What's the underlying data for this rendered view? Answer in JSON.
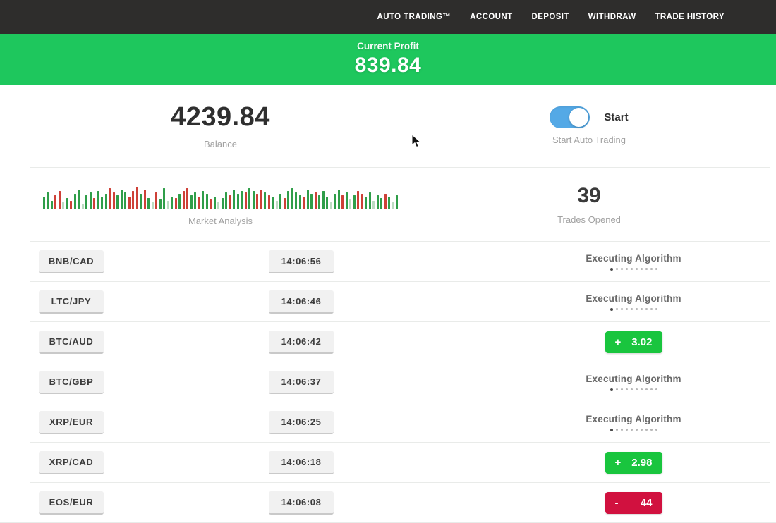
{
  "navbar": {
    "items": [
      {
        "label": "AUTO TRADING™"
      },
      {
        "label": "ACCOUNT"
      },
      {
        "label": "DEPOSIT"
      },
      {
        "label": "WITHDRAW"
      },
      {
        "label": "TRADE HISTORY"
      }
    ]
  },
  "profit_banner": {
    "label": "Current Profit",
    "value": "839.84",
    "bg": "#1ec75d"
  },
  "balance": {
    "value": "4239.84",
    "label": "Balance"
  },
  "auto_trading": {
    "toggle_state": "on",
    "toggle_color": "#54a9e6",
    "toggle_label": "Start",
    "caption": "Start Auto Trading"
  },
  "market_analysis": {
    "label": "Market Analysis",
    "bar_colors": {
      "g": "#2f9e49",
      "r": "#ce4037",
      "G": "#bcdcc2"
    },
    "bars": [
      [
        18,
        "g"
      ],
      [
        24,
        "g"
      ],
      [
        12,
        "g"
      ],
      [
        20,
        "r"
      ],
      [
        26,
        "r"
      ],
      [
        10,
        "G"
      ],
      [
        16,
        "g"
      ],
      [
        12,
        "r"
      ],
      [
        22,
        "g"
      ],
      [
        28,
        "g"
      ],
      [
        8,
        "G"
      ],
      [
        20,
        "g"
      ],
      [
        24,
        "g"
      ],
      [
        16,
        "r"
      ],
      [
        26,
        "g"
      ],
      [
        18,
        "g"
      ],
      [
        22,
        "g"
      ],
      [
        30,
        "r"
      ],
      [
        24,
        "r"
      ],
      [
        20,
        "g"
      ],
      [
        28,
        "g"
      ],
      [
        24,
        "g"
      ],
      [
        18,
        "r"
      ],
      [
        26,
        "r"
      ],
      [
        32,
        "r"
      ],
      [
        22,
        "g"
      ],
      [
        28,
        "r"
      ],
      [
        16,
        "g"
      ],
      [
        10,
        "G"
      ],
      [
        24,
        "r"
      ],
      [
        14,
        "g"
      ],
      [
        30,
        "g"
      ],
      [
        12,
        "G"
      ],
      [
        18,
        "g"
      ],
      [
        16,
        "r"
      ],
      [
        22,
        "g"
      ],
      [
        26,
        "r"
      ],
      [
        30,
        "r"
      ],
      [
        20,
        "g"
      ],
      [
        24,
        "g"
      ],
      [
        18,
        "r"
      ],
      [
        26,
        "g"
      ],
      [
        22,
        "g"
      ],
      [
        14,
        "r"
      ],
      [
        18,
        "g"
      ],
      [
        10,
        "G"
      ],
      [
        16,
        "g"
      ],
      [
        24,
        "g"
      ],
      [
        20,
        "r"
      ],
      [
        28,
        "g"
      ],
      [
        22,
        "g"
      ],
      [
        26,
        "g"
      ],
      [
        24,
        "r"
      ],
      [
        30,
        "g"
      ],
      [
        26,
        "g"
      ],
      [
        22,
        "r"
      ],
      [
        28,
        "r"
      ],
      [
        24,
        "g"
      ],
      [
        20,
        "r"
      ],
      [
        18,
        "g"
      ],
      [
        12,
        "G"
      ],
      [
        22,
        "g"
      ],
      [
        16,
        "r"
      ],
      [
        26,
        "g"
      ],
      [
        30,
        "g"
      ],
      [
        24,
        "g"
      ],
      [
        20,
        "g"
      ],
      [
        18,
        "r"
      ],
      [
        28,
        "g"
      ],
      [
        22,
        "g"
      ],
      [
        24,
        "r"
      ],
      [
        20,
        "g"
      ],
      [
        26,
        "g"
      ],
      [
        18,
        "g"
      ],
      [
        10,
        "G"
      ],
      [
        22,
        "g"
      ],
      [
        28,
        "g"
      ],
      [
        20,
        "r"
      ],
      [
        24,
        "g"
      ],
      [
        14,
        "G"
      ],
      [
        20,
        "g"
      ],
      [
        26,
        "r"
      ],
      [
        22,
        "r"
      ],
      [
        18,
        "g"
      ],
      [
        24,
        "g"
      ],
      [
        12,
        "G"
      ],
      [
        20,
        "g"
      ],
      [
        16,
        "g"
      ],
      [
        22,
        "r"
      ],
      [
        18,
        "g"
      ],
      [
        10,
        "G"
      ],
      [
        20,
        "g"
      ]
    ]
  },
  "trades_opened": {
    "value": "39",
    "label": "Trades Opened"
  },
  "trades": {
    "rows": [
      {
        "pair": "BNB/CAD",
        "time": "14:06:56",
        "result": {
          "kind": "executing",
          "label": "Executing Algorithm",
          "dots": 10
        }
      },
      {
        "pair": "LTC/JPY",
        "time": "14:06:46",
        "result": {
          "kind": "executing",
          "label": "Executing Algorithm",
          "dots": 10
        }
      },
      {
        "pair": "BTC/AUD",
        "time": "14:06:42",
        "result": {
          "kind": "profit",
          "sign": "+",
          "value": "3.02"
        }
      },
      {
        "pair": "BTC/GBP",
        "time": "14:06:37",
        "result": {
          "kind": "executing",
          "label": "Executing Algorithm",
          "dots": 10
        }
      },
      {
        "pair": "XRP/EUR",
        "time": "14:06:25",
        "result": {
          "kind": "executing",
          "label": "Executing Algorithm",
          "dots": 10
        }
      },
      {
        "pair": "XRP/CAD",
        "time": "14:06:18",
        "result": {
          "kind": "profit",
          "sign": "+",
          "value": "2.98"
        }
      },
      {
        "pair": "EOS/EUR",
        "time": "14:06:08",
        "result": {
          "kind": "loss",
          "sign": "-",
          "value": "44"
        }
      }
    ]
  },
  "colors": {
    "navbar_bg": "#2e2d2c",
    "profit_green": "#19c53e",
    "loss_red": "#d1113f"
  }
}
